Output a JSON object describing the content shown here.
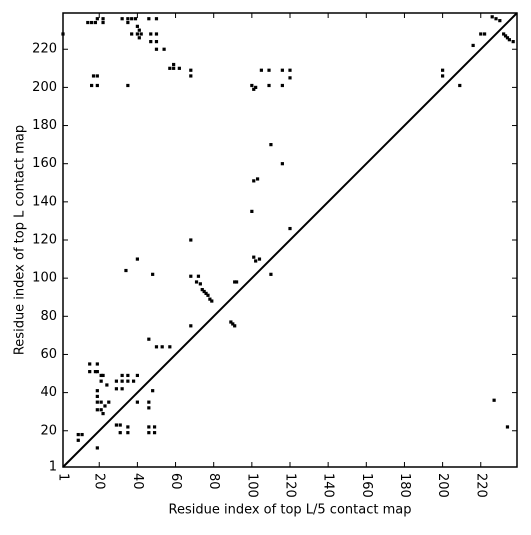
{
  "chart_data": {
    "type": "scatter",
    "xlabel": "Residue index of top L/5 contact map",
    "ylabel": "Residue index of top L contact map",
    "color": "#000000",
    "xlim": [
      1,
      239
    ],
    "ylim": [
      1,
      239
    ],
    "xticks": [
      1,
      20,
      40,
      60,
      80,
      100,
      120,
      140,
      160,
      180,
      200,
      220
    ],
    "yticks": [
      1,
      20,
      40,
      60,
      80,
      100,
      120,
      140,
      160,
      180,
      200,
      220
    ],
    "x": [
      14,
      16,
      18,
      19,
      22,
      22,
      17,
      19,
      16,
      19,
      32,
      35,
      37,
      39,
      40,
      40,
      41,
      42,
      47,
      47,
      50,
      50,
      50,
      46,
      50,
      35,
      54,
      57,
      59,
      59,
      62,
      68,
      68,
      109,
      105,
      116,
      120,
      120,
      116,
      109,
      100,
      101,
      102,
      101,
      103,
      100,
      110,
      116,
      120,
      68,
      101,
      102,
      104,
      110,
      92,
      68,
      72,
      200,
      200,
      209,
      216,
      220,
      222,
      1,
      40,
      34,
      48,
      35,
      37,
      41,
      9,
      11,
      9,
      15,
      15,
      18,
      19,
      19,
      21,
      22,
      21,
      24,
      19,
      19,
      19,
      19,
      21,
      21,
      22,
      23,
      25,
      29,
      29,
      32,
      32,
      32,
      35,
      35,
      38,
      29,
      31,
      31,
      35,
      35,
      40,
      40,
      46,
      46,
      46,
      46,
      49,
      49,
      48,
      50,
      53,
      57,
      46,
      19,
      68,
      71,
      73,
      74,
      75,
      76,
      77,
      78,
      79,
      89,
      90,
      91,
      91,
      226,
      228,
      230,
      232,
      233,
      234,
      235,
      237,
      227,
      234
    ],
    "y": [
      234,
      234,
      234,
      236,
      234,
      236,
      206,
      206,
      201,
      201,
      236,
      234,
      236,
      236,
      232,
      228,
      230,
      228,
      228,
      224,
      228,
      224,
      220,
      236,
      236,
      201,
      220,
      210,
      210,
      212,
      210,
      206,
      209,
      209,
      209,
      209,
      205,
      209,
      201,
      201,
      201,
      199,
      200,
      151,
      152,
      135,
      170,
      160,
      126,
      120,
      111,
      109,
      110,
      102,
      98,
      101,
      101,
      206,
      209,
      201,
      222,
      228,
      228,
      228,
      110,
      104,
      102,
      236,
      228,
      226,
      18,
      18,
      15,
      55,
      51,
      51,
      51,
      55,
      49,
      49,
      46,
      44,
      41,
      38,
      35,
      31,
      35,
      31,
      29,
      33,
      35,
      46,
      42,
      42,
      46,
      49,
      49,
      46,
      46,
      23,
      23,
      19,
      19,
      22,
      49,
      35,
      35,
      32,
      19,
      22,
      19,
      22,
      41,
      64,
      64,
      64,
      68,
      11,
      75,
      98,
      97,
      94,
      93,
      92,
      91,
      89,
      88,
      77,
      76,
      75,
      98,
      237,
      236,
      235,
      228,
      227,
      226,
      225,
      224,
      36,
      22
    ]
  }
}
